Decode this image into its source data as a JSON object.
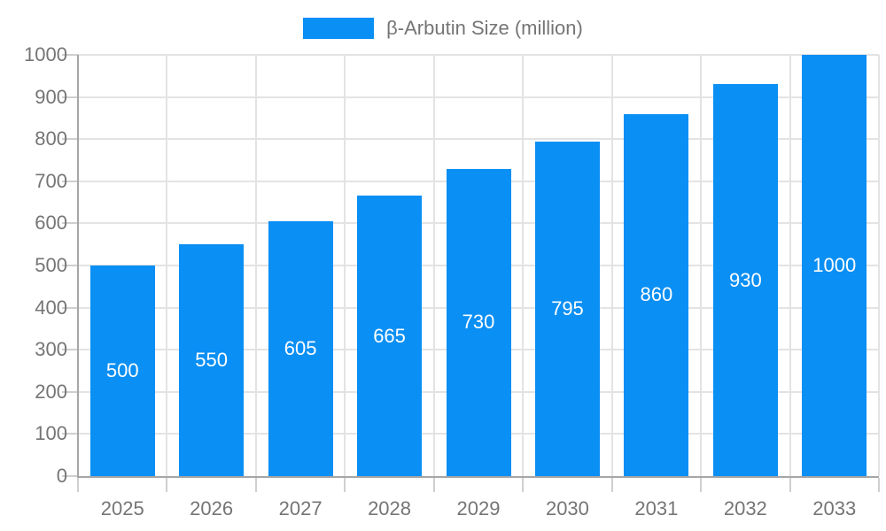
{
  "chart_data": {
    "type": "bar",
    "title": "",
    "legend": {
      "label": "β-Arbutin Size (million)",
      "position": "top"
    },
    "categories": [
      "2025",
      "2026",
      "2027",
      "2028",
      "2029",
      "2030",
      "2031",
      "2032",
      "2033"
    ],
    "series": [
      {
        "name": "β-Arbutin Size (million)",
        "values": [
          500,
          550,
          605,
          665,
          730,
          795,
          860,
          930,
          1000
        ]
      }
    ],
    "value_labels_shown": true,
    "xlabel": "",
    "ylabel": "",
    "ylim": [
      0,
      1000
    ],
    "yticks": [
      0,
      100,
      200,
      300,
      400,
      500,
      600,
      700,
      800,
      900,
      1000
    ],
    "grid": "on",
    "colors": {
      "bar": "#0A8FF4",
      "axis_text": "#757575",
      "value_label_text": "#FFFFFF",
      "gridline": "#E3E3E3",
      "axis_line": "#A6A6A6",
      "tick": "#CFCFCF",
      "background": "#FFFFFF"
    }
  }
}
